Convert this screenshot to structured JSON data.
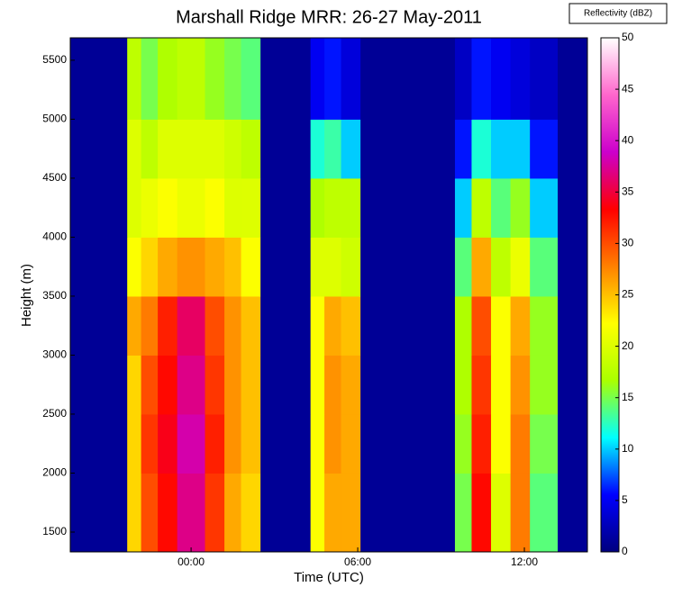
{
  "chart_data": {
    "type": "heatmap",
    "title": "Marshall Ridge MRR: 26-27 May-2011",
    "x_label": "Time (UTC)",
    "y_label": "Height (m)",
    "colorbar_label": "Reflectivity (dBZ)",
    "x_edges": [
      -4.35,
      -2.3,
      -1.8,
      -1.2,
      -0.5,
      0.5,
      1.2,
      1.8,
      2.5,
      4.3,
      4.8,
      5.4,
      6.1,
      9.5,
      10.1,
      10.8,
      11.5,
      12.2,
      13.2,
      14.27
    ],
    "y_edges": [
      1332,
      2000,
      2500,
      3000,
      3500,
      4000,
      4500,
      5000,
      5690
    ],
    "values": [
      [
        1,
        24,
        30,
        33,
        37,
        31,
        26,
        24,
        1,
        22,
        26,
        26,
        1,
        15,
        33,
        20,
        28,
        14,
        1
      ],
      [
        1,
        24,
        31,
        34,
        38,
        32,
        27,
        25,
        1,
        22,
        27,
        26,
        1,
        16,
        32,
        22,
        28,
        15,
        1
      ],
      [
        1,
        24,
        30,
        33,
        37,
        31,
        27,
        25,
        1,
        22,
        27,
        26,
        1,
        17,
        31,
        22,
        27,
        16,
        1
      ],
      [
        1,
        26,
        28,
        32,
        36,
        30,
        27,
        25,
        1,
        22,
        26,
        25,
        1,
        17,
        30,
        22,
        26,
        16,
        1
      ],
      [
        1,
        22,
        24,
        26,
        27,
        26,
        25,
        22,
        1,
        20,
        20,
        19,
        1,
        14,
        26,
        18,
        21,
        14,
        1
      ],
      [
        1,
        20,
        21,
        22,
        21,
        22,
        20,
        20,
        1,
        17,
        18,
        18,
        1,
        10,
        18,
        14,
        16,
        10,
        1
      ],
      [
        1,
        20,
        18,
        20,
        20,
        20,
        19,
        18,
        1,
        12,
        13,
        10,
        1,
        6,
        12,
        10,
        10,
        6,
        1
      ],
      [
        1,
        18,
        15,
        17,
        18,
        16,
        15,
        14,
        1,
        5,
        6,
        4,
        1,
        3,
        6,
        5,
        4,
        3,
        1
      ]
    ],
    "xlim": [
      -4.35,
      14.27
    ],
    "xticks": [
      {
        "value": 0,
        "label": "00:00"
      },
      {
        "value": 6,
        "label": "06:00"
      },
      {
        "value": 12,
        "label": "12:00"
      }
    ],
    "ylim": [
      1332,
      5690
    ],
    "yticks": [
      1500,
      2000,
      2500,
      3000,
      3500,
      4000,
      4500,
      5000,
      5500
    ],
    "clim": [
      0,
      50
    ],
    "cticks": [
      0,
      5,
      10,
      15,
      20,
      25,
      30,
      35,
      40,
      45,
      50
    ],
    "colormap": [
      "#00007f",
      "#0000ff",
      "#00ffff",
      "#aaff00",
      "#ffff00",
      "#ff8000",
      "#ff0000",
      "#cc00cc",
      "#ff66cc",
      "#ffffff"
    ]
  }
}
